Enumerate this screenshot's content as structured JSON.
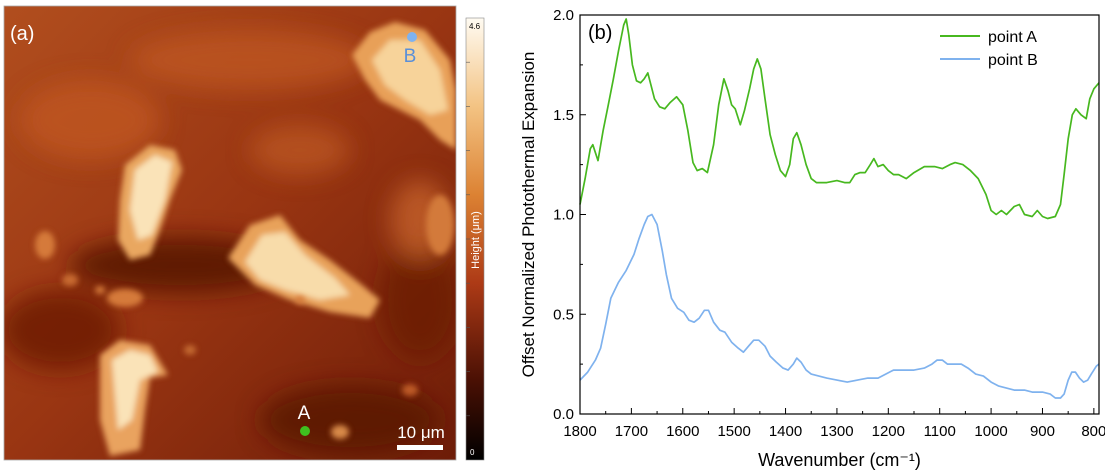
{
  "panel_a": {
    "label": "(a)",
    "point_a_label": "A",
    "point_b_label": "B",
    "point_a_color": "#3fbf1f",
    "point_b_color": "#7fb2ee",
    "scalebar_label": "10 μm",
    "colorbar": {
      "title": "Height (μm)",
      "max_label": "4.6",
      "min_label": "0",
      "colors": [
        "#000000",
        "#5a1205",
        "#b3401a",
        "#e08a3a",
        "#f6c98a",
        "#fffaf0"
      ]
    }
  },
  "chart_data": {
    "type": "line",
    "panel_label": "(b)",
    "xlabel": "Wavenumber (cm⁻¹)",
    "ylabel": "Offset Normalized Photothermal Expansion",
    "xlim": [
      1800,
      790
    ],
    "ylim": [
      0,
      2.0
    ],
    "x_ticks": [
      1800,
      1700,
      1600,
      1500,
      1400,
      1300,
      1200,
      1100,
      1000,
      900,
      800
    ],
    "y_ticks": [
      0.0,
      0.5,
      1.0,
      1.5,
      2.0
    ],
    "x_tick_labels": [
      "1800",
      "1700",
      "1600",
      "1500",
      "1400",
      "1300",
      "1200",
      "1100",
      "1000",
      "900",
      "800"
    ],
    "y_tick_labels": [
      "0.0",
      "0.5",
      "1.0",
      "1.5",
      "2.0"
    ],
    "legend_position": "top-right",
    "series": [
      {
        "name": "point A",
        "color": "#47b81f",
        "points": [
          [
            1800,
            1.05
          ],
          [
            1790,
            1.18
          ],
          [
            1780,
            1.33
          ],
          [
            1775,
            1.35
          ],
          [
            1765,
            1.27
          ],
          [
            1755,
            1.42
          ],
          [
            1745,
            1.55
          ],
          [
            1735,
            1.68
          ],
          [
            1725,
            1.82
          ],
          [
            1715,
            1.95
          ],
          [
            1710,
            1.98
          ],
          [
            1705,
            1.9
          ],
          [
            1698,
            1.75
          ],
          [
            1690,
            1.67
          ],
          [
            1682,
            1.66
          ],
          [
            1675,
            1.68
          ],
          [
            1668,
            1.71
          ],
          [
            1662,
            1.65
          ],
          [
            1655,
            1.58
          ],
          [
            1645,
            1.54
          ],
          [
            1635,
            1.53
          ],
          [
            1625,
            1.56
          ],
          [
            1612,
            1.59
          ],
          [
            1600,
            1.55
          ],
          [
            1590,
            1.42
          ],
          [
            1580,
            1.26
          ],
          [
            1572,
            1.22
          ],
          [
            1562,
            1.23
          ],
          [
            1552,
            1.21
          ],
          [
            1540,
            1.35
          ],
          [
            1530,
            1.55
          ],
          [
            1520,
            1.68
          ],
          [
            1512,
            1.62
          ],
          [
            1505,
            1.55
          ],
          [
            1498,
            1.53
          ],
          [
            1488,
            1.45
          ],
          [
            1480,
            1.52
          ],
          [
            1470,
            1.63
          ],
          [
            1462,
            1.73
          ],
          [
            1455,
            1.78
          ],
          [
            1448,
            1.73
          ],
          [
            1440,
            1.58
          ],
          [
            1430,
            1.4
          ],
          [
            1420,
            1.3
          ],
          [
            1410,
            1.22
          ],
          [
            1400,
            1.19
          ],
          [
            1392,
            1.25
          ],
          [
            1385,
            1.38
          ],
          [
            1378,
            1.41
          ],
          [
            1370,
            1.35
          ],
          [
            1360,
            1.25
          ],
          [
            1350,
            1.18
          ],
          [
            1340,
            1.16
          ],
          [
            1320,
            1.16
          ],
          [
            1300,
            1.17
          ],
          [
            1285,
            1.16
          ],
          [
            1275,
            1.16
          ],
          [
            1265,
            1.2
          ],
          [
            1255,
            1.21
          ],
          [
            1245,
            1.21
          ],
          [
            1235,
            1.25
          ],
          [
            1228,
            1.28
          ],
          [
            1220,
            1.24
          ],
          [
            1210,
            1.25
          ],
          [
            1200,
            1.22
          ],
          [
            1190,
            1.2
          ],
          [
            1180,
            1.2
          ],
          [
            1165,
            1.18
          ],
          [
            1150,
            1.21
          ],
          [
            1130,
            1.24
          ],
          [
            1110,
            1.24
          ],
          [
            1095,
            1.23
          ],
          [
            1080,
            1.25
          ],
          [
            1070,
            1.26
          ],
          [
            1055,
            1.25
          ],
          [
            1040,
            1.22
          ],
          [
            1025,
            1.18
          ],
          [
            1010,
            1.1
          ],
          [
            1000,
            1.02
          ],
          [
            990,
            1.0
          ],
          [
            980,
            1.02
          ],
          [
            970,
            1.0
          ],
          [
            955,
            1.04
          ],
          [
            945,
            1.05
          ],
          [
            935,
            1.0
          ],
          [
            920,
            0.99
          ],
          [
            910,
            1.02
          ],
          [
            900,
            0.99
          ],
          [
            890,
            0.98
          ],
          [
            875,
            0.99
          ],
          [
            865,
            1.05
          ],
          [
            858,
            1.2
          ],
          [
            850,
            1.38
          ],
          [
            842,
            1.5
          ],
          [
            835,
            1.53
          ],
          [
            825,
            1.5
          ],
          [
            815,
            1.48
          ],
          [
            808,
            1.58
          ],
          [
            800,
            1.63
          ],
          [
            790,
            1.66
          ]
        ]
      },
      {
        "name": "point B",
        "color": "#7fb2ee",
        "points": [
          [
            1800,
            0.17
          ],
          [
            1785,
            0.21
          ],
          [
            1770,
            0.27
          ],
          [
            1760,
            0.33
          ],
          [
            1750,
            0.45
          ],
          [
            1740,
            0.58
          ],
          [
            1725,
            0.66
          ],
          [
            1710,
            0.72
          ],
          [
            1695,
            0.8
          ],
          [
            1685,
            0.88
          ],
          [
            1675,
            0.95
          ],
          [
            1668,
            0.99
          ],
          [
            1660,
            1.0
          ],
          [
            1650,
            0.95
          ],
          [
            1640,
            0.82
          ],
          [
            1632,
            0.7
          ],
          [
            1622,
            0.58
          ],
          [
            1610,
            0.53
          ],
          [
            1598,
            0.51
          ],
          [
            1588,
            0.47
          ],
          [
            1578,
            0.46
          ],
          [
            1568,
            0.48
          ],
          [
            1558,
            0.52
          ],
          [
            1550,
            0.52
          ],
          [
            1540,
            0.46
          ],
          [
            1528,
            0.42
          ],
          [
            1518,
            0.41
          ],
          [
            1505,
            0.36
          ],
          [
            1492,
            0.33
          ],
          [
            1482,
            0.31
          ],
          [
            1472,
            0.34
          ],
          [
            1462,
            0.37
          ],
          [
            1452,
            0.37
          ],
          [
            1440,
            0.34
          ],
          [
            1430,
            0.29
          ],
          [
            1418,
            0.26
          ],
          [
            1405,
            0.23
          ],
          [
            1395,
            0.22
          ],
          [
            1385,
            0.25
          ],
          [
            1378,
            0.28
          ],
          [
            1370,
            0.26
          ],
          [
            1360,
            0.22
          ],
          [
            1350,
            0.2
          ],
          [
            1335,
            0.19
          ],
          [
            1320,
            0.18
          ],
          [
            1300,
            0.17
          ],
          [
            1280,
            0.16
          ],
          [
            1260,
            0.17
          ],
          [
            1240,
            0.18
          ],
          [
            1220,
            0.18
          ],
          [
            1205,
            0.2
          ],
          [
            1190,
            0.22
          ],
          [
            1170,
            0.22
          ],
          [
            1150,
            0.22
          ],
          [
            1130,
            0.23
          ],
          [
            1115,
            0.25
          ],
          [
            1105,
            0.27
          ],
          [
            1095,
            0.27
          ],
          [
            1085,
            0.25
          ],
          [
            1070,
            0.25
          ],
          [
            1058,
            0.25
          ],
          [
            1045,
            0.23
          ],
          [
            1030,
            0.2
          ],
          [
            1015,
            0.19
          ],
          [
            1000,
            0.16
          ],
          [
            985,
            0.14
          ],
          [
            970,
            0.13
          ],
          [
            955,
            0.12
          ],
          [
            935,
            0.12
          ],
          [
            920,
            0.11
          ],
          [
            900,
            0.11
          ],
          [
            885,
            0.1
          ],
          [
            875,
            0.08
          ],
          [
            865,
            0.08
          ],
          [
            858,
            0.1
          ],
          [
            850,
            0.17
          ],
          [
            843,
            0.21
          ],
          [
            836,
            0.21
          ],
          [
            828,
            0.18
          ],
          [
            820,
            0.16
          ],
          [
            812,
            0.17
          ],
          [
            805,
            0.2
          ],
          [
            795,
            0.24
          ],
          [
            790,
            0.25
          ]
        ]
      }
    ]
  }
}
